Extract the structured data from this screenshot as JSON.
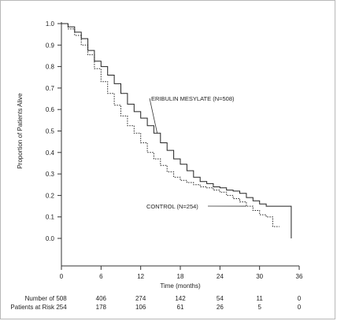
{
  "chart_data": {
    "type": "line",
    "xlabel": "Time (months)",
    "ylabel": "Proportion of Patients Alive",
    "xlim": [
      0,
      36
    ],
    "ylim": [
      0.0,
      1.0
    ],
    "x_ticks": [
      "0",
      "6",
      "12",
      "18",
      "24",
      "30",
      "36"
    ],
    "y_ticks": [
      "0.0",
      "0.1",
      "0.2",
      "0.3",
      "0.4",
      "0.5",
      "0.6",
      "0.7",
      "0.8",
      "0.9",
      "1.0"
    ],
    "grid": false,
    "series": [
      {
        "name": "ERIBULIN MESYLATE (N=508)",
        "style": "solid",
        "color": "#222222",
        "x": [
          0,
          1,
          2,
          3,
          4,
          5,
          6,
          7,
          8,
          9,
          10,
          11,
          12,
          13,
          14,
          15,
          16,
          17,
          18,
          19,
          20,
          21,
          22,
          23,
          24,
          25,
          26,
          27,
          28,
          29,
          30,
          31,
          32,
          33,
          34,
          34.8
        ],
        "y": [
          1.0,
          0.985,
          0.96,
          0.93,
          0.875,
          0.825,
          0.8,
          0.76,
          0.72,
          0.675,
          0.625,
          0.59,
          0.56,
          0.525,
          0.49,
          0.445,
          0.41,
          0.37,
          0.345,
          0.315,
          0.285,
          0.265,
          0.255,
          0.24,
          0.235,
          0.225,
          0.22,
          0.21,
          0.19,
          0.175,
          0.16,
          0.15,
          0.15,
          0.15,
          0.15,
          0.0
        ]
      },
      {
        "name": "CONTROL (N=254)",
        "style": "dotted",
        "color": "#222222",
        "x": [
          0,
          1,
          2,
          3,
          4,
          5,
          6,
          7,
          8,
          9,
          10,
          11,
          12,
          13,
          14,
          15,
          16,
          17,
          18,
          19,
          20,
          21,
          22,
          23,
          24,
          25,
          26,
          27,
          28,
          29,
          30,
          31,
          32,
          33
        ],
        "y": [
          1.0,
          0.975,
          0.945,
          0.9,
          0.855,
          0.79,
          0.73,
          0.675,
          0.62,
          0.57,
          0.525,
          0.49,
          0.445,
          0.4,
          0.37,
          0.34,
          0.31,
          0.285,
          0.27,
          0.26,
          0.25,
          0.24,
          0.235,
          0.225,
          0.215,
          0.2,
          0.185,
          0.17,
          0.15,
          0.13,
          0.11,
          0.1,
          0.055,
          0.055
        ]
      }
    ],
    "annotations": [
      {
        "text": "ERIBULIN MESYLATE (N=508)",
        "points_to_series": 0,
        "at_x": 14.5
      },
      {
        "text": "CONTROL (N=254)",
        "points_to_series": 1,
        "at_x": 28
      }
    ],
    "risk_table": {
      "label_line1": "Number of",
      "label_line2": "Patients at Risk",
      "rows": [
        {
          "series": 0,
          "values": [
            "508",
            "406",
            "274",
            "142",
            "54",
            "11",
            "0"
          ]
        },
        {
          "series": 1,
          "values": [
            "254",
            "178",
            "106",
            "61",
            "26",
            "5",
            "0"
          ]
        }
      ]
    }
  }
}
